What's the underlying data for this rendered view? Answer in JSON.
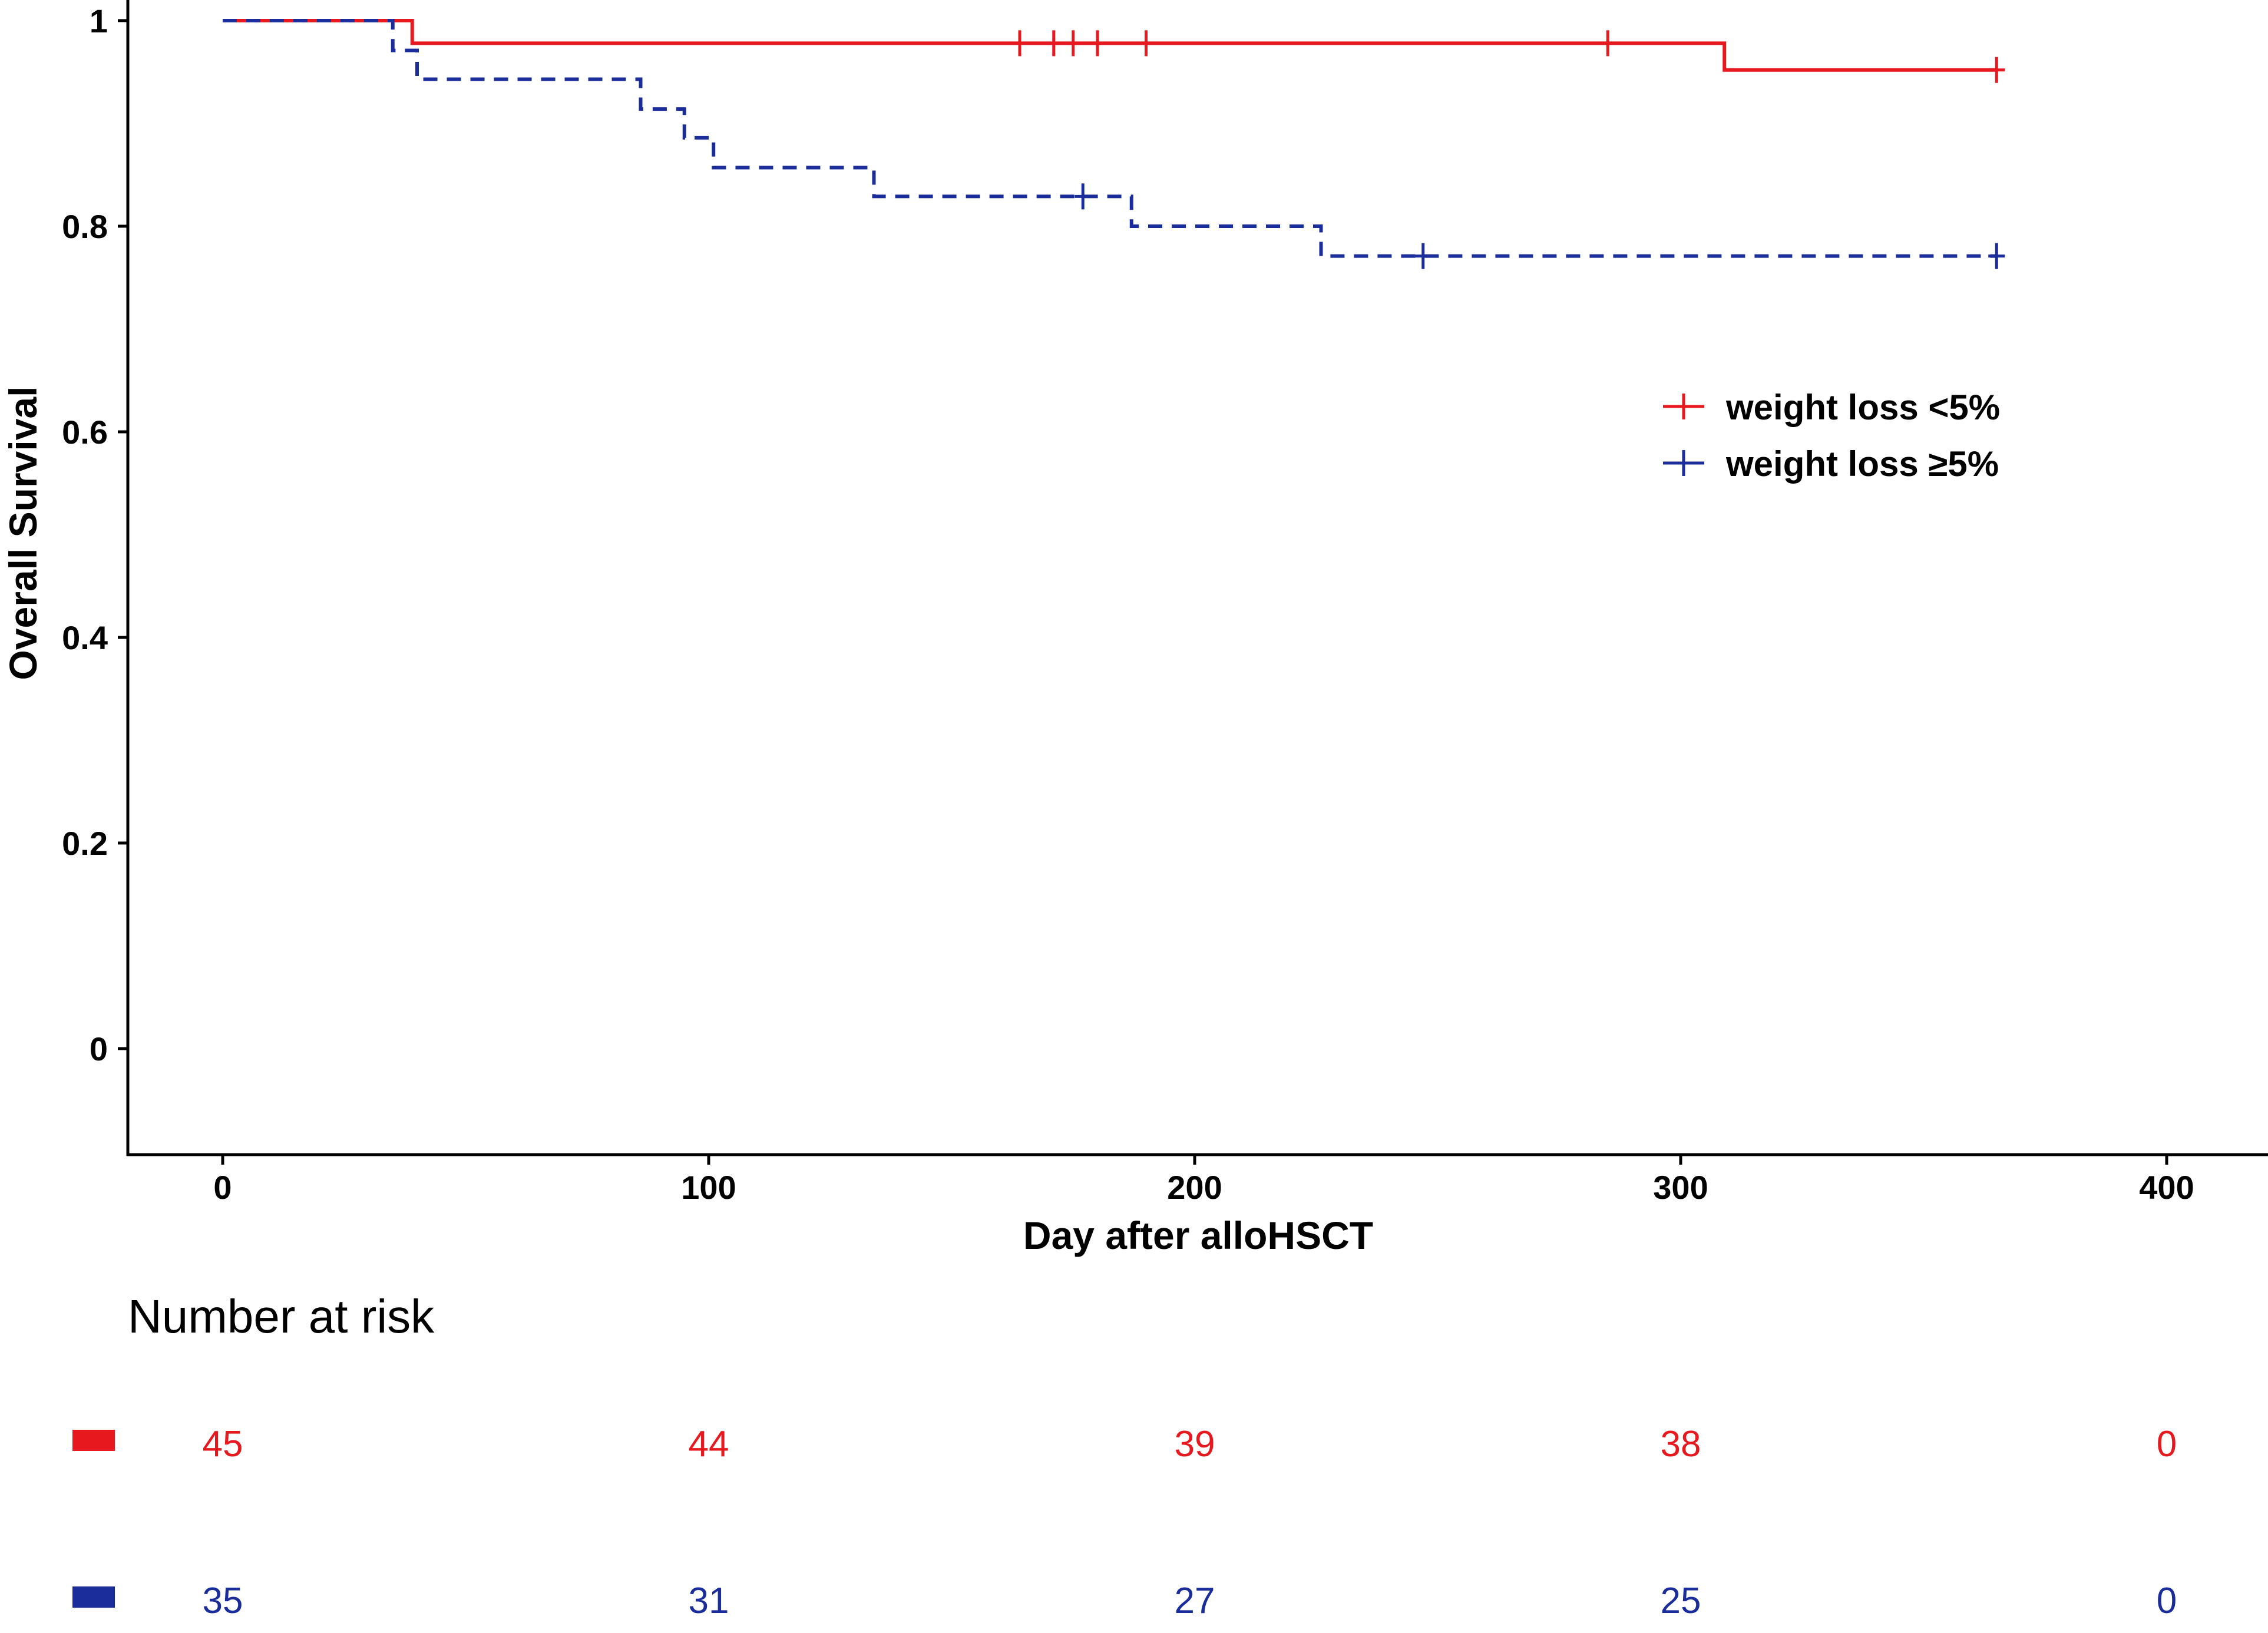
{
  "chart_data": {
    "type": "line",
    "subtype": "kaplan-meier step plot",
    "title": "",
    "xlabel": "Day after alloHSCT",
    "ylabel": "Overall Survival",
    "xlim": [
      -20,
      420
    ],
    "ylim": [
      -0.1,
      1.0
    ],
    "x_ticks": [
      0,
      100,
      200,
      300,
      400
    ],
    "x_tick_labels": [
      "0",
      "100",
      "200",
      "300",
      "400"
    ],
    "y_ticks": [
      0,
      0.2,
      0.4,
      0.6,
      0.8,
      1.0
    ],
    "y_tick_labels": [
      "0",
      "0.2",
      "0.4",
      "0.6",
      "0.8",
      "1"
    ],
    "grid": false,
    "legend_position": "right-upper",
    "series": [
      {
        "name": "weight loss <5%",
        "color": "#e8191e",
        "line_style": "solid",
        "steps": [
          [
            0,
            1.0
          ],
          [
            39,
            0.978
          ],
          [
            309,
            0.952
          ],
          [
            365,
            0.952
          ]
        ],
        "censor_times": [
          164,
          171,
          175,
          180,
          190,
          285,
          365
        ]
      },
      {
        "name": "weight loss ≥5%",
        "color": "#1a2d9a",
        "line_style": "dashed",
        "steps": [
          [
            0,
            1.0
          ],
          [
            35,
            0.971
          ],
          [
            40,
            0.943
          ],
          [
            86,
            0.914
          ],
          [
            95,
            0.886
          ],
          [
            101,
            0.857
          ],
          [
            134,
            0.829
          ],
          [
            187,
            0.8
          ],
          [
            226,
            0.771
          ],
          [
            365,
            0.771
          ]
        ],
        "censor_times": [
          177,
          247,
          365
        ]
      }
    ],
    "risk_table": {
      "title": "Number at risk",
      "times": [
        0,
        100,
        200,
        300,
        400
      ],
      "rows": [
        {
          "series": "weight loss <5%",
          "color": "#e8191e",
          "counts": [
            "45",
            "44",
            "39",
            "38",
            "0"
          ]
        },
        {
          "series": "weight loss ≥5%",
          "color": "#1a2d9a",
          "counts": [
            "35",
            "31",
            "27",
            "25",
            "0"
          ]
        }
      ]
    }
  }
}
